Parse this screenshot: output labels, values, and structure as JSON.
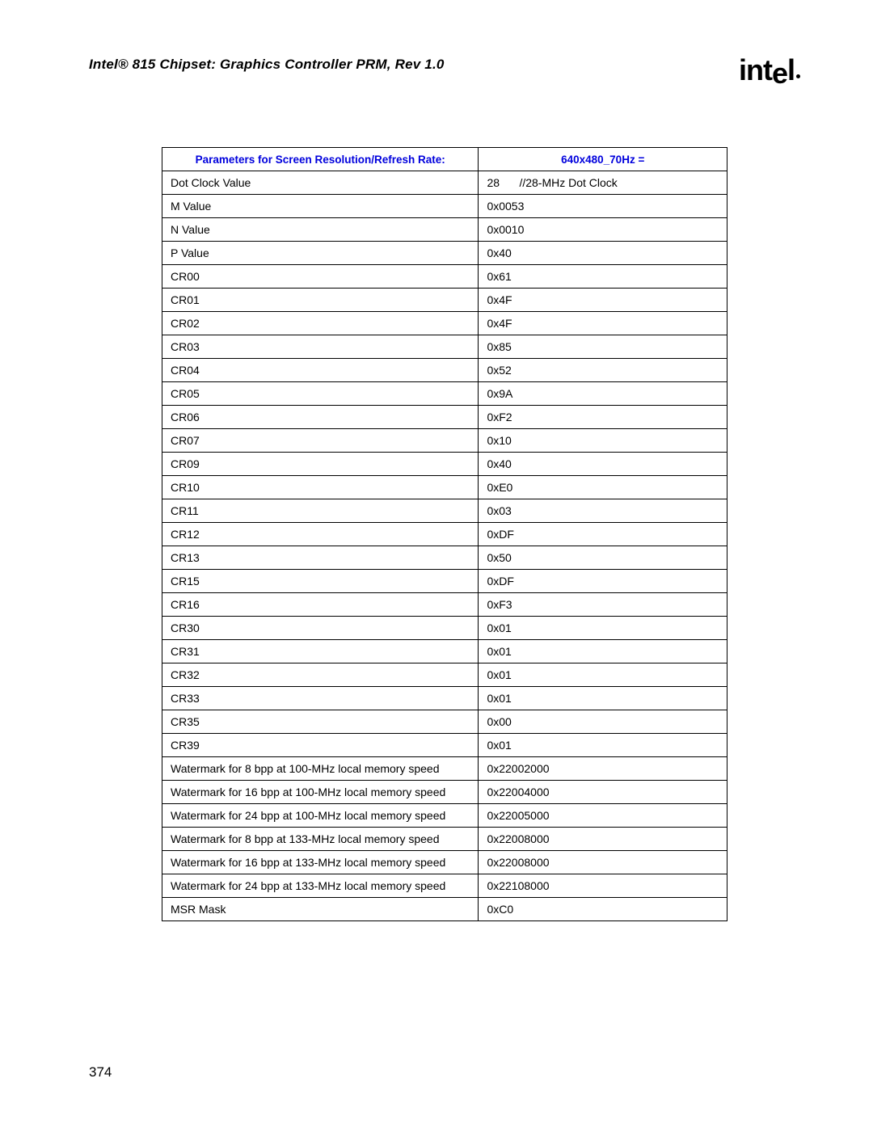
{
  "document": {
    "title": "Intel® 815 Chipset: Graphics Controller PRM, Rev 1.0",
    "logo_text": "intel",
    "page_number": "374"
  },
  "table": {
    "header_color": "#0000dd",
    "border_color": "#000000",
    "header": {
      "param_label": "Parameters for Screen Resolution/Refresh Rate:",
      "value_label": "640x480_70Hz ="
    },
    "rows": [
      {
        "param": "Dot Clock Value",
        "value_left": "28",
        "value_right": "//28-MHz Dot Clock"
      },
      {
        "param": "M Value",
        "value": "0x0053"
      },
      {
        "param": "N Value",
        "value": "0x0010"
      },
      {
        "param": "P Value",
        "value": "0x40"
      },
      {
        "param": "CR00",
        "value": "0x61"
      },
      {
        "param": "CR01",
        "value": "0x4F"
      },
      {
        "param": "CR02",
        "value": "0x4F"
      },
      {
        "param": "CR03",
        "value": "0x85"
      },
      {
        "param": "CR04",
        "value": "0x52"
      },
      {
        "param": "CR05",
        "value": "0x9A"
      },
      {
        "param": "CR06",
        "value": "0xF2"
      },
      {
        "param": "CR07",
        "value": "0x10"
      },
      {
        "param": "CR09",
        "value": "0x40"
      },
      {
        "param": "CR10",
        "value": "0xE0"
      },
      {
        "param": "CR11",
        "value": "0x03"
      },
      {
        "param": "CR12",
        "value": "0xDF"
      },
      {
        "param": "CR13",
        "value": "0x50"
      },
      {
        "param": "CR15",
        "value": "0xDF"
      },
      {
        "param": "CR16",
        "value": "0xF3"
      },
      {
        "param": "CR30",
        "value": "0x01"
      },
      {
        "param": "CR31",
        "value": "0x01"
      },
      {
        "param": "CR32",
        "value": "0x01"
      },
      {
        "param": "CR33",
        "value": "0x01"
      },
      {
        "param": "CR35",
        "value": "0x00"
      },
      {
        "param": "CR39",
        "value": "0x01"
      },
      {
        "param": "Watermark for 8 bpp at 100-MHz local memory speed",
        "value": "0x22002000"
      },
      {
        "param": "Watermark for 16 bpp at 100-MHz local memory speed",
        "value": "0x22004000"
      },
      {
        "param": "Watermark for 24 bpp at 100-MHz local memory speed",
        "value": "0x22005000"
      },
      {
        "param": "Watermark for 8 bpp at 133-MHz local memory speed",
        "value": "0x22008000"
      },
      {
        "param": "Watermark for 16 bpp at 133-MHz local memory speed",
        "value": "0x22008000"
      },
      {
        "param": "Watermark for 24 bpp at 133-MHz local memory speed",
        "value": "0x22108000"
      },
      {
        "param": "MSR Mask",
        "value": "0xC0"
      }
    ]
  }
}
